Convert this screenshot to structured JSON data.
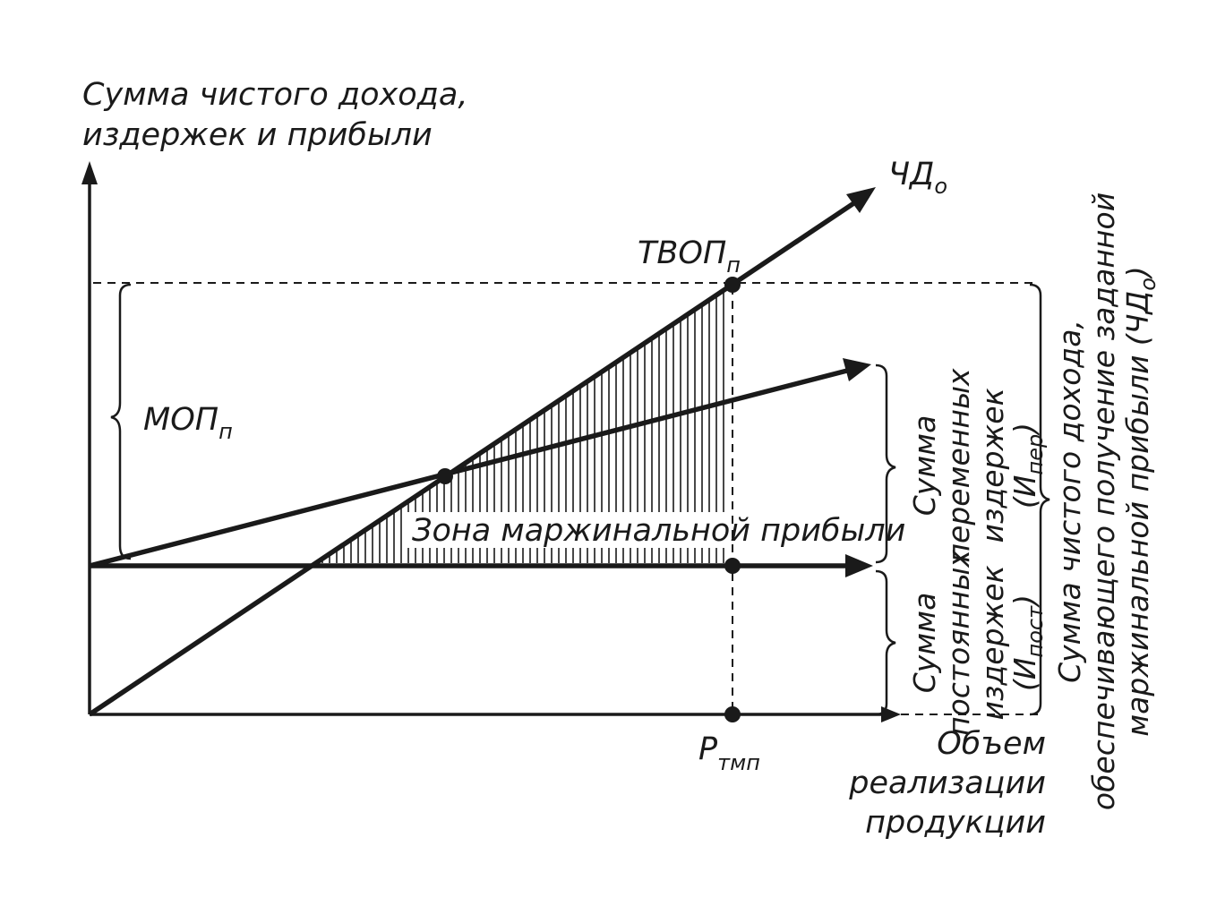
{
  "y_axis_label": [
    "Сумма чистого дохода,",
    "издержек и прибыли"
  ],
  "x_axis_label": [
    "Объем",
    "реализации",
    "продукции"
  ],
  "net_income_line": {
    "label": "ЧД",
    "sub": "о"
  },
  "threshold_point": {
    "label": "ТВОП",
    "sub": "п"
  },
  "margin_label": {
    "label": "МОП",
    "sub": "п"
  },
  "volume_point": {
    "label": "Р",
    "sub": "тмп"
  },
  "zone_label": "Зона маржинальной прибыли",
  "variable_costs": {
    "line1": "Сумма",
    "line2": "переменных",
    "line3": "издержек",
    "paren": "(И",
    "sub": "пер",
    "close": ")"
  },
  "fixed_costs": {
    "line1": "Сумма",
    "line2": "постоянных",
    "line3": "издержек",
    "paren": "(И",
    "sub": "пост",
    "close": ")"
  },
  "total_income": {
    "line1": "Сумма чистого дохода,",
    "line2": "обеспечивающего получение заданной",
    "line3": "маржинальной прибыли (ЧД",
    "sub": "о",
    "close": ")"
  }
}
